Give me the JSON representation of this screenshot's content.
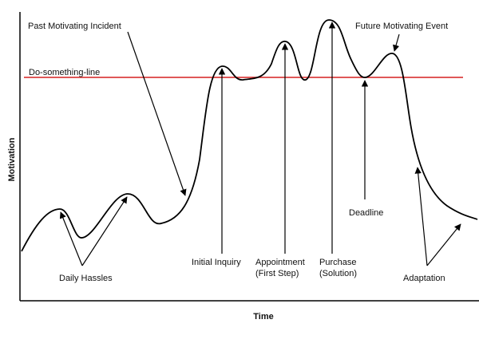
{
  "axes": {
    "y_label": "Motivation",
    "x_label": "Time"
  },
  "threshold_label": "Do-something-line",
  "annotations": {
    "past_incident": "Past Motivating Incident",
    "future_event": "Future Motivating Event",
    "daily_hassles": "Daily Hassles",
    "initial_inquiry": "Initial Inquiry",
    "appointment": [
      "Appointment",
      "(First Step)"
    ],
    "purchase": [
      "Purchase",
      "(Solution)"
    ],
    "deadline": "Deadline",
    "adaptation": "Adaptation"
  }
}
